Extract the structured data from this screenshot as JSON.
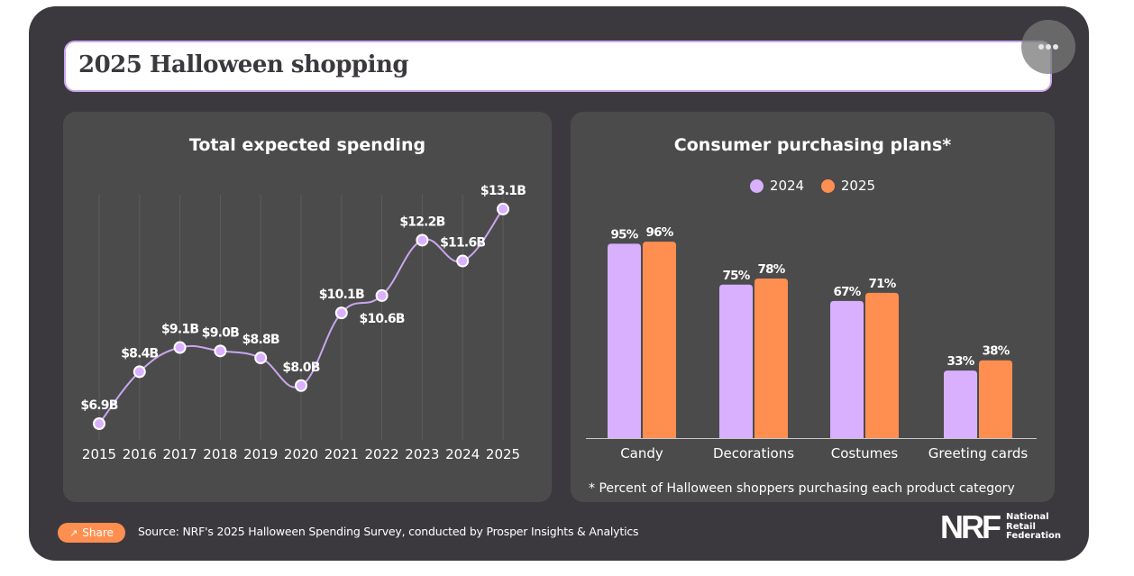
{
  "header": {
    "title": "2025 Halloween shopping",
    "more_button_icon": "more-dots-icon"
  },
  "footer": {
    "share_label": "Share",
    "share_icon": "share-icon",
    "source": "Source: NRF's 2025 Halloween Spending Survey, conducted by Prosper Insights & Analytics",
    "logo_mark": "NRF",
    "logo_name": [
      "National",
      "Retail",
      "Federation"
    ]
  },
  "colors": {
    "line": "#c9a6ee",
    "point": "#dab0ff",
    "bar_2024": "#d8b0fd",
    "bar_2025": "#ff8f50",
    "panel_bg": "#4b4b4b",
    "card_bg": "#3c393e"
  },
  "chart_data": [
    {
      "type": "line",
      "title": "Total expected spending",
      "xlabel": "",
      "ylabel": "",
      "unit": "$B",
      "x": [
        "2015",
        "2016",
        "2017",
        "2018",
        "2019",
        "2020",
        "2021",
        "2022",
        "2023",
        "2024",
        "2025"
      ],
      "values": [
        6.9,
        8.4,
        9.1,
        9.0,
        8.8,
        8.0,
        10.1,
        10.6,
        12.2,
        11.6,
        13.1
      ],
      "labels": [
        "$6.9B",
        "$8.4B",
        "$9.1B",
        "$9.0B",
        "$8.8B",
        "$8.0B",
        "$10.1B",
        "$10.6B",
        "$12.2B",
        "$11.6B",
        "$13.1B"
      ],
      "grid": "vertical",
      "legend": "none"
    },
    {
      "type": "bar",
      "title": "Consumer purchasing plans*",
      "categories": [
        "Candy",
        "Decorations",
        "Costumes",
        "Greeting cards"
      ],
      "series": [
        {
          "name": "2024",
          "values": [
            95,
            75,
            67,
            33
          ]
        },
        {
          "name": "2025",
          "values": [
            96,
            78,
            71,
            38
          ]
        }
      ],
      "unit": "%",
      "ylim": [
        0,
        100
      ],
      "legend": "top-center",
      "footnote": "* Percent of Halloween shoppers purchasing each product category"
    }
  ]
}
